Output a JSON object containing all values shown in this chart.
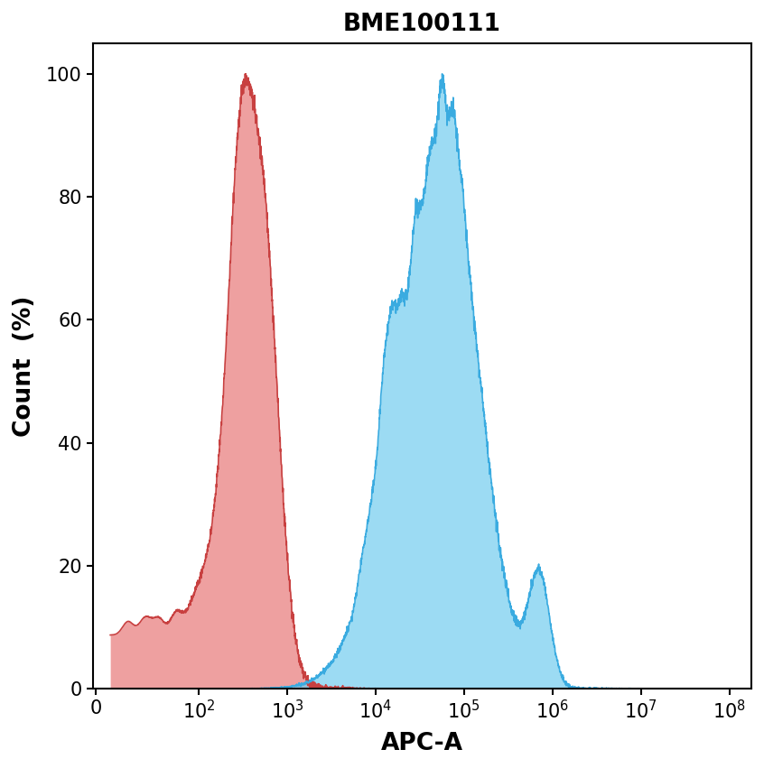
{
  "title": "BME100111",
  "xlabel": "APC-A",
  "ylabel": "Count  (%)",
  "ylim": [
    0,
    105
  ],
  "title_fontsize": 19,
  "axis_label_fontsize": 19,
  "tick_fontsize": 15,
  "red_fill_color": "#E87878",
  "red_line_color": "#C84040",
  "blue_fill_color": "#72CCEE",
  "blue_line_color": "#3AABE0",
  "red_alpha": 0.7,
  "blue_alpha": 0.7,
  "background_color": "#ffffff",
  "xtick_positions": [
    0,
    100,
    1000,
    10000,
    100000,
    1000000,
    10000000,
    100000000
  ],
  "xtick_labels": [
    "0",
    "10$^2$",
    "10$^3$",
    "10$^4$",
    "10$^5$",
    "10$^6$",
    "10$^7$",
    "10$^8$"
  ],
  "ytick_positions": [
    0,
    20,
    40,
    60,
    80,
    100
  ],
  "ytick_labels": [
    "0",
    "20",
    "40",
    "60",
    "80",
    "100"
  ]
}
